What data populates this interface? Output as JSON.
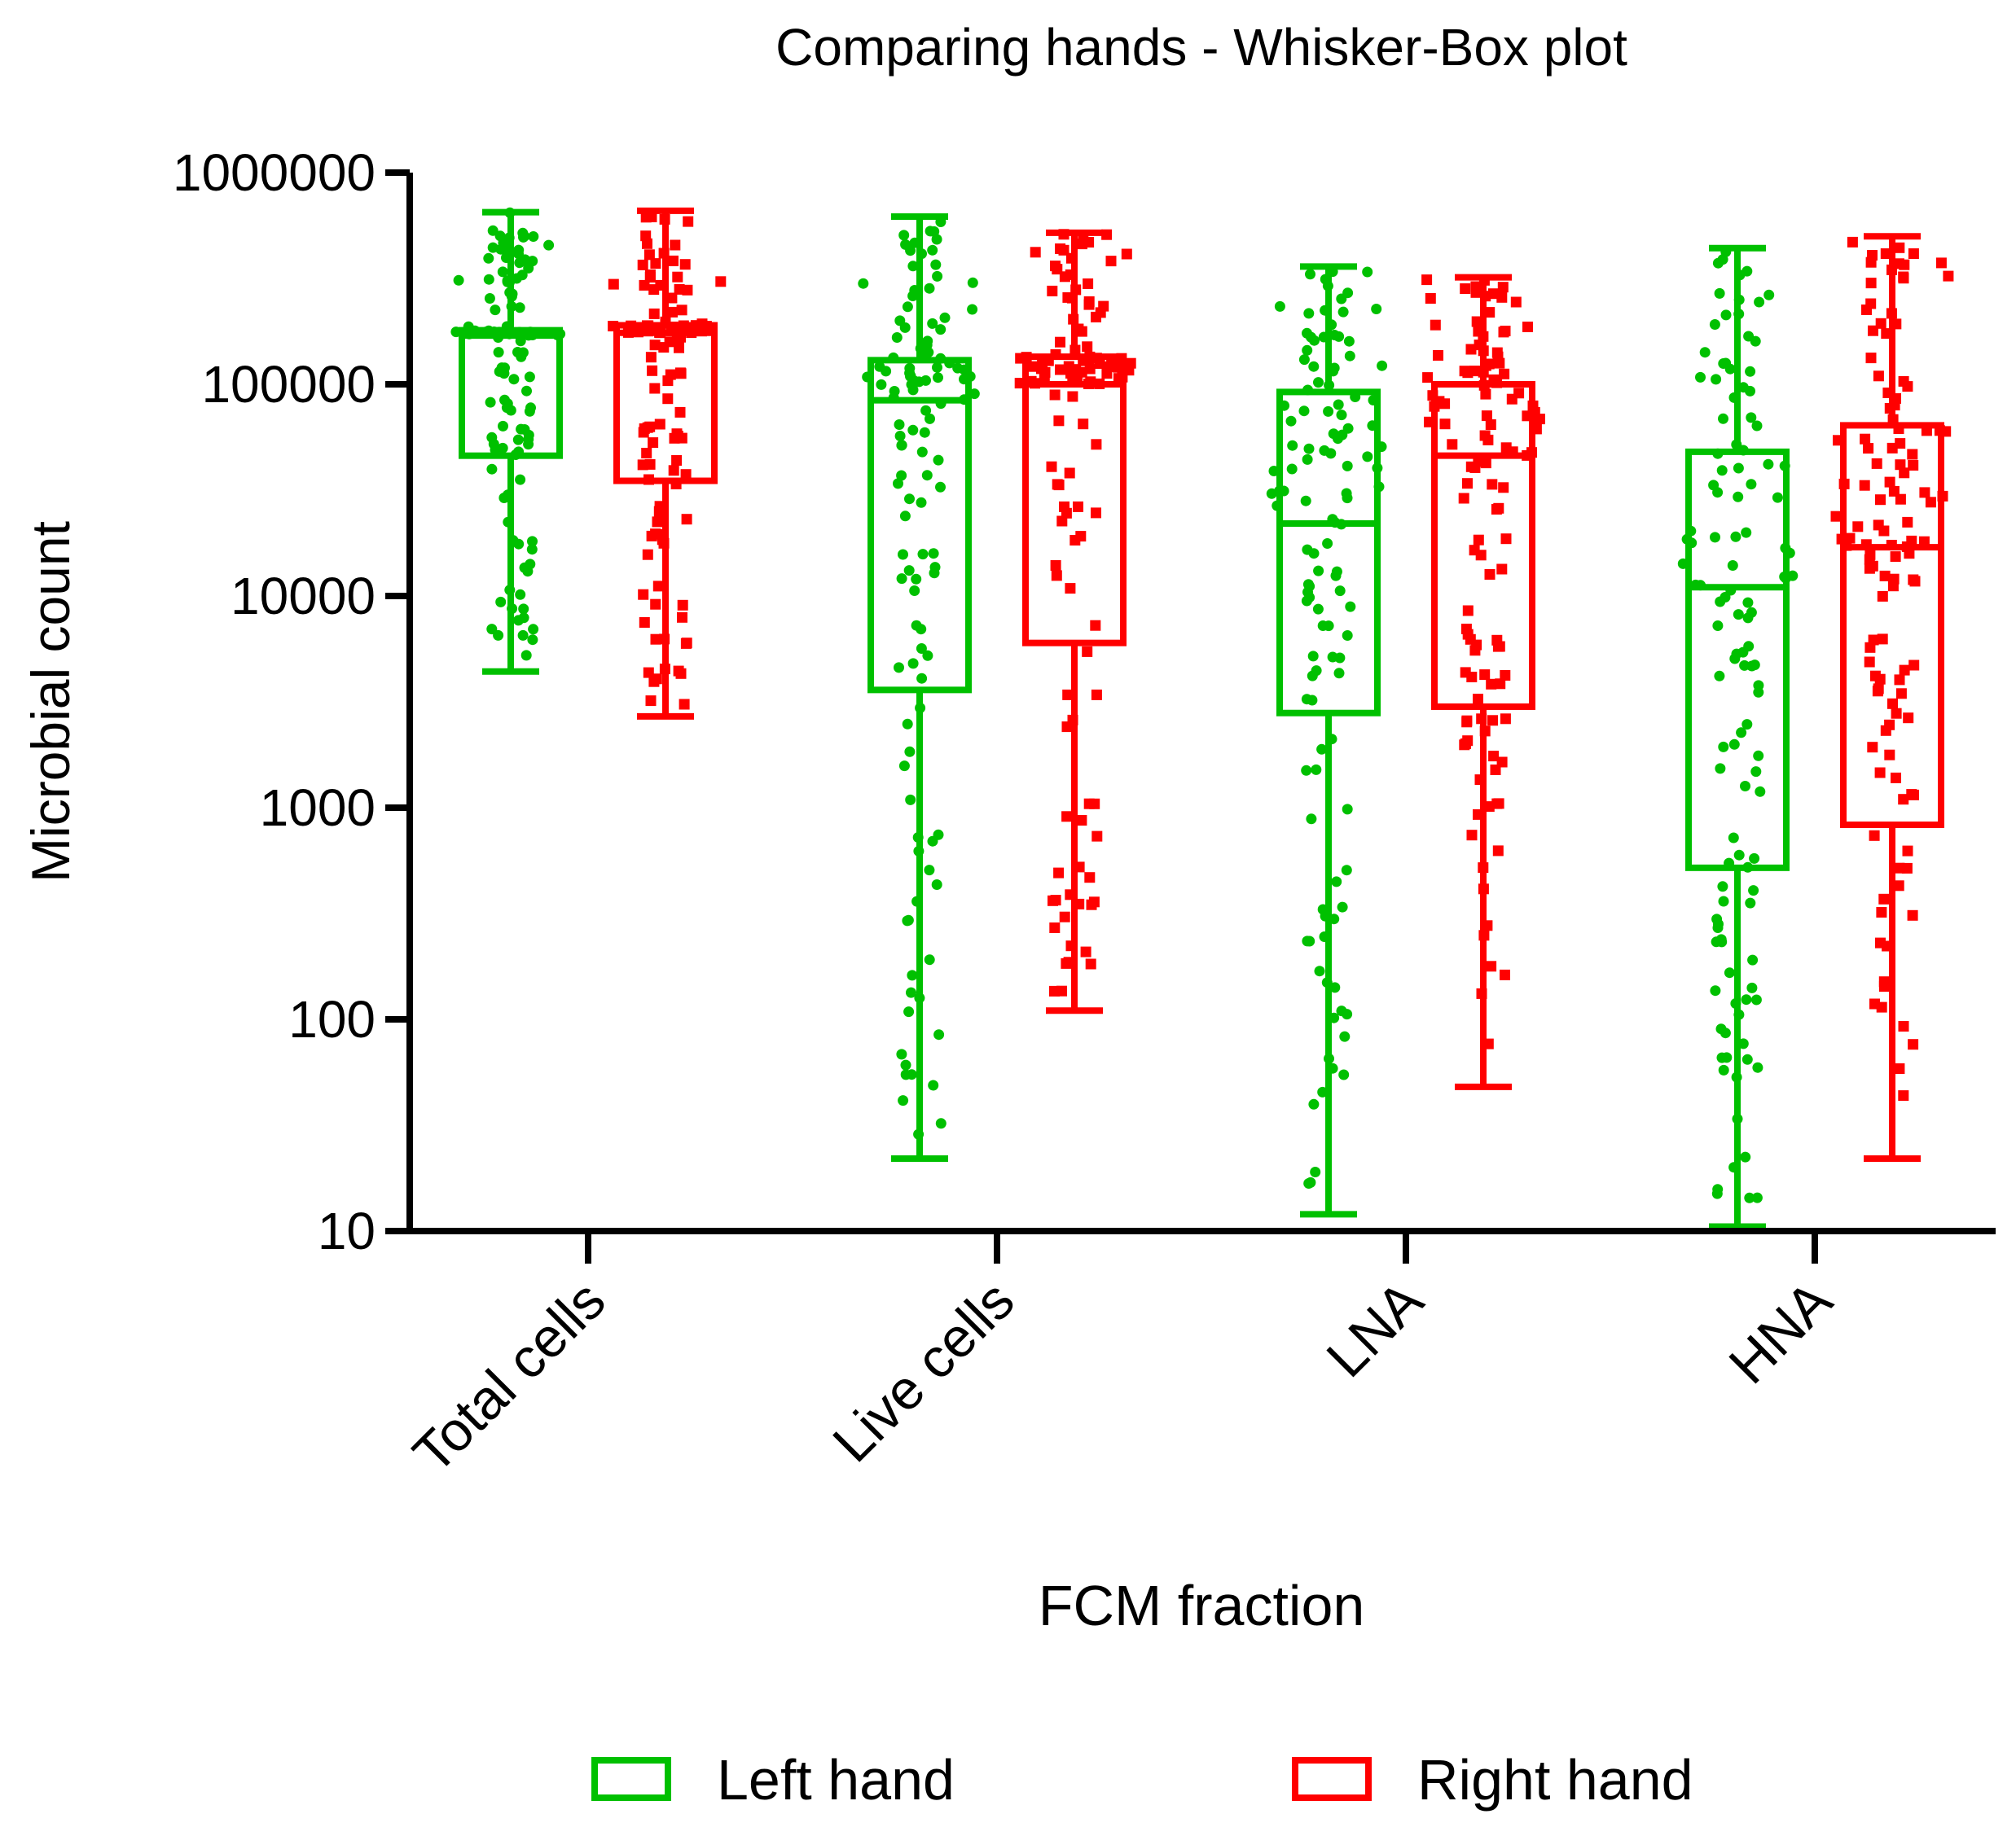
{
  "chart_data": {
    "type": "box",
    "title": "Comparing hands - Whisker-Box plot",
    "xlabel": "FCM fraction",
    "ylabel": "Microbial count",
    "yscale": "log",
    "ylim": [
      10,
      1000000
    ],
    "yticks": [
      10,
      100,
      1000,
      10000,
      100000,
      1000000
    ],
    "ytick_labels": [
      "10",
      "100",
      "1000",
      "10000",
      "100000",
      "1000000"
    ],
    "categories": [
      "Total cells",
      "Live cells",
      "LNA",
      "HNA"
    ],
    "legend_position": "bottom",
    "grid": false,
    "series": [
      {
        "name": "Left hand",
        "color": "#00c000",
        "marker": "circle",
        "boxes": [
          {
            "min": 4400,
            "q1": 46000,
            "median": 170000,
            "q3": 180000,
            "max": 650000
          },
          {
            "min": 22,
            "q1": 3600,
            "median": 84000,
            "q3": 130000,
            "max": 620000
          },
          {
            "min": 12,
            "q1": 2800,
            "median": 22000,
            "q3": 92000,
            "max": 360000
          },
          {
            "min": 10.5,
            "q1": 520,
            "median": 11000,
            "q3": 48000,
            "max": 440000
          }
        ]
      },
      {
        "name": "Right hand",
        "color": "#ff0000",
        "marker": "square",
        "boxes": [
          {
            "min": 2700,
            "q1": 35000,
            "median": 175000,
            "q3": 190000,
            "max": 660000
          },
          {
            "min": 110,
            "q1": 6000,
            "median": 100000,
            "q3": 135000,
            "max": 520000
          },
          {
            "min": 48,
            "q1": 3000,
            "median": 46000,
            "q3": 100000,
            "max": 320000
          },
          {
            "min": 22,
            "q1": 830,
            "median": 17000,
            "q3": 64000,
            "max": 500000
          }
        ]
      }
    ]
  }
}
